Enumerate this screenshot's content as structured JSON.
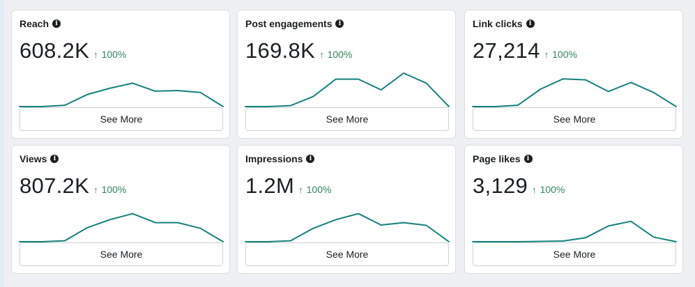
{
  "metrics": [
    {
      "title": "Reach",
      "value": "608.2K",
      "change": "100%",
      "trend": [
        0.0,
        0.0,
        0.04,
        0.36,
        0.55,
        0.7,
        0.46,
        0.48,
        0.42,
        0.0
      ]
    },
    {
      "title": "Post engagements",
      "value": "169.8K",
      "change": "100%",
      "trend": [
        0.0,
        0.0,
        0.03,
        0.3,
        0.82,
        0.82,
        0.5,
        1.0,
        0.7,
        0.0
      ]
    },
    {
      "title": "Link clicks",
      "value": "27,214",
      "change": "100%",
      "trend": [
        0.0,
        0.0,
        0.04,
        0.52,
        0.83,
        0.8,
        0.45,
        0.72,
        0.42,
        0.0
      ]
    },
    {
      "title": "Views",
      "value": "807.2K",
      "change": "100%",
      "trend": [
        0.0,
        0.0,
        0.03,
        0.42,
        0.66,
        0.84,
        0.57,
        0.57,
        0.4,
        0.0
      ]
    },
    {
      "title": "Impressions",
      "value": "1.2M",
      "change": "100%",
      "trend": [
        0.0,
        0.0,
        0.03,
        0.4,
        0.66,
        0.84,
        0.5,
        0.57,
        0.49,
        0.0
      ]
    },
    {
      "title": "Page likes",
      "value": "3,129",
      "change": "100%",
      "trend": [
        0.0,
        0.0,
        0.0,
        0.01,
        0.02,
        0.12,
        0.47,
        0.61,
        0.14,
        0.0
      ]
    }
  ],
  "see_more_label": "See More",
  "icons": {
    "info": "info-icon",
    "change": "arrow-up-icon"
  },
  "colors": {
    "sparkline": "#14807a",
    "positive_change": "#31855c"
  }
}
